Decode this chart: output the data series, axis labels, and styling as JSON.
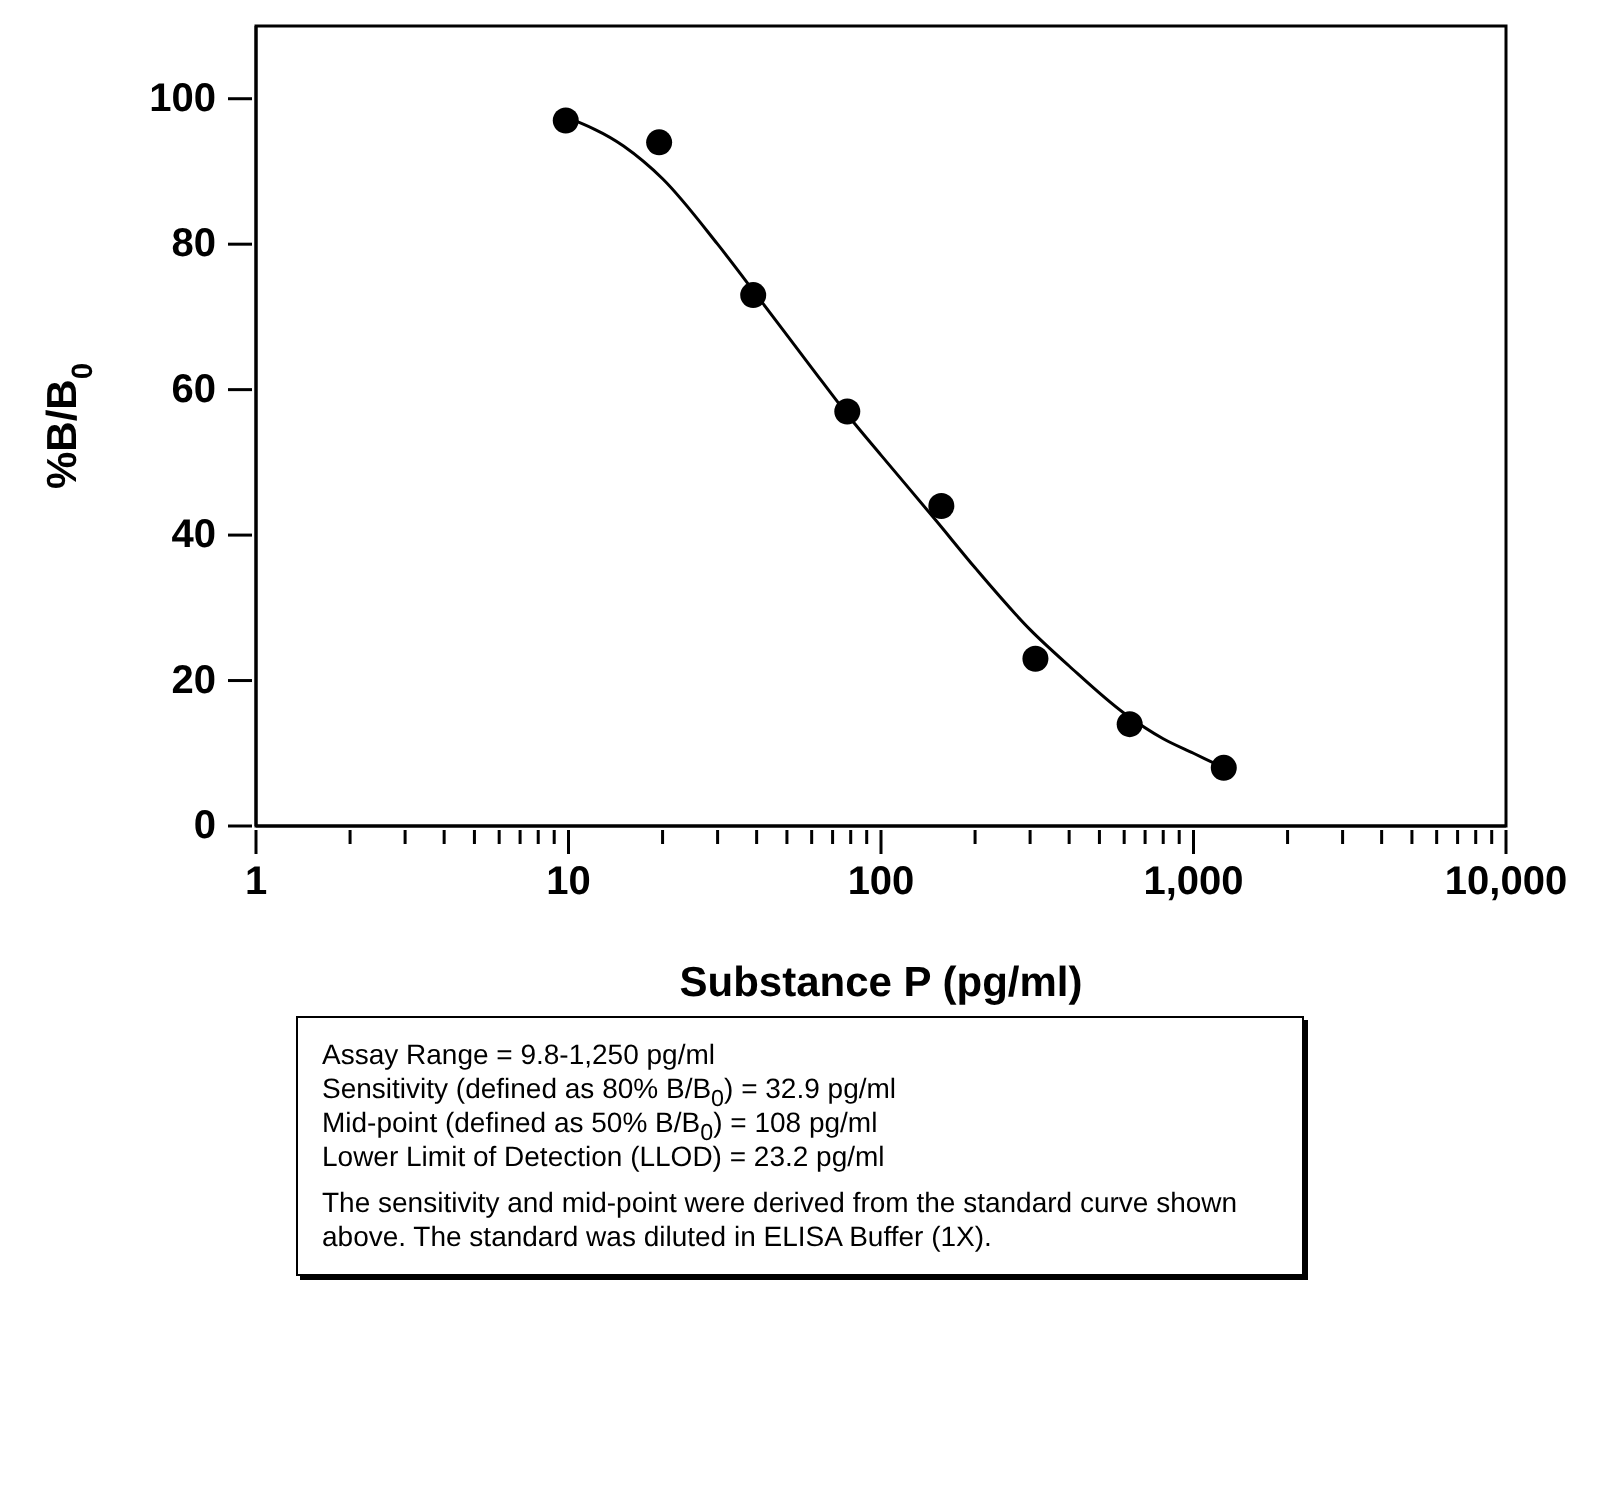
{
  "chart_data": {
    "type": "scatter",
    "xlabel": "Substance P (pg/ml)",
    "ylabel": "%B/B$_{0}$",
    "log": "x",
    "xlim": [
      1,
      10000
    ],
    "ylim": [
      0,
      110
    ],
    "xticks": [
      1,
      {
        "value": 2,
        "label": null
      },
      {
        "value": 3,
        "label": null
      },
      {
        "value": 4,
        "label": null
      },
      {
        "value": 5,
        "label": null
      },
      {
        "value": 6,
        "label": null
      },
      {
        "value": 7,
        "label": null
      },
      {
        "value": 8,
        "label": null
      },
      {
        "value": 9,
        "label": null
      },
      10,
      {
        "value": 20,
        "label": null
      },
      {
        "value": 30,
        "label": null
      },
      {
        "value": 40,
        "label": null
      },
      {
        "value": 50,
        "label": null
      },
      {
        "value": 60,
        "label": null
      },
      {
        "value": 70,
        "label": null
      },
      {
        "value": 80,
        "label": null
      },
      {
        "value": 90,
        "label": null
      },
      100,
      {
        "value": 200,
        "label": null
      },
      {
        "value": 300,
        "label": null
      },
      {
        "value": 400,
        "label": null
      },
      {
        "value": 500,
        "label": null
      },
      {
        "value": 600,
        "label": null
      },
      {
        "value": 700,
        "label": null
      },
      {
        "value": 800,
        "label": null
      },
      {
        "value": 900,
        "label": null
      },
      {
        "value": 1000,
        "label": "1,000"
      },
      {
        "value": 2000,
        "label": null
      },
      {
        "value": 3000,
        "label": null
      },
      {
        "value": 4000,
        "label": null
      },
      {
        "value": 5000,
        "label": null
      },
      {
        "value": 6000,
        "label": null
      },
      {
        "value": 7000,
        "label": null
      },
      {
        "value": 8000,
        "label": null
      },
      {
        "value": 9000,
        "label": null
      },
      {
        "value": 10000,
        "label": "10,000"
      }
    ],
    "yticks": [
      0,
      20,
      40,
      60,
      80,
      100
    ],
    "series": [
      {
        "color": "#000000",
        "marker": "circle",
        "x": [
          9.8,
          19.5,
          39,
          78,
          156,
          312,
          625,
          1250
        ],
        "values": [
          97,
          94,
          73,
          57,
          44,
          23,
          14,
          8
        ]
      },
      {
        "type": "line",
        "color": "#000000",
        "marker": "none",
        "x": [
          9.8,
          15,
          20,
          30,
          40,
          60,
          80,
          100,
          150,
          200,
          300,
          400,
          600,
          800,
          1000,
          1250
        ],
        "values": [
          97.5,
          93.5,
          89,
          80,
          73,
          63,
          56,
          51,
          42,
          35.5,
          27,
          22,
          15.5,
          12,
          10,
          8
        ]
      }
    ],
    "annotations": [
      "Assay Range = 9.8-1,250 pg/ml",
      "Sensitivity (defined as 80% B/B$_{0}$) =  32.9 pg/ml",
      "Mid-point (defined as 50% B/B$_{0}$) =  108 pg/ml",
      "Lower Limit of Detection (LLOD) =  23.2 pg/ml",
      "The sensitivity and mid-point were derived from the standard curve shown above. The standard was diluted in ELISA Buffer (1X)."
    ]
  }
}
